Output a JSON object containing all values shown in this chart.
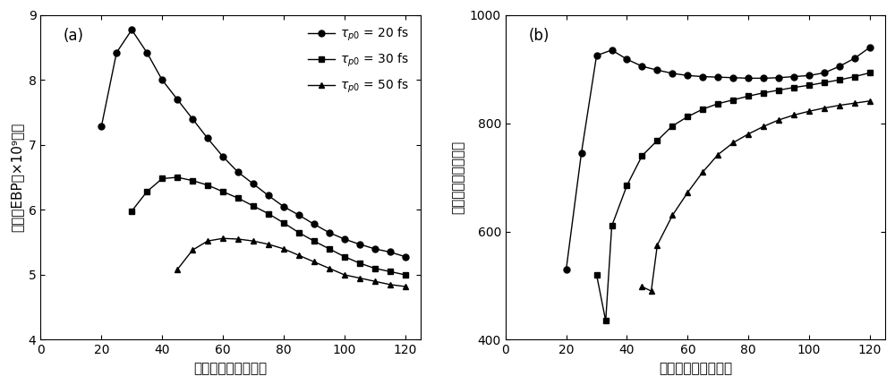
{
  "panel_a": {
    "title": "(a)",
    "xlabel": "泵浦光脉宽（飞秒）",
    "ylabel": "闪频光EBP（×10⁹瓦）",
    "xlim": [
      0,
      125
    ],
    "ylim": [
      4,
      9
    ],
    "yticks": [
      4,
      5,
      6,
      7,
      8,
      9
    ],
    "xticks": [
      0,
      20,
      40,
      60,
      80,
      100,
      120
    ],
    "series": [
      {
        "label": "20",
        "marker": "o",
        "x": [
          20,
          25,
          30,
          35,
          40,
          45,
          50,
          55,
          60,
          65,
          70,
          75,
          80,
          85,
          90,
          95,
          100,
          105,
          110,
          115,
          120
        ],
        "y": [
          7.28,
          8.42,
          8.77,
          8.42,
          8.0,
          7.7,
          7.4,
          7.1,
          6.82,
          6.58,
          6.4,
          6.22,
          6.05,
          5.92,
          5.78,
          5.65,
          5.55,
          5.47,
          5.4,
          5.35,
          5.28
        ]
      },
      {
        "label": "30",
        "marker": "s",
        "x": [
          30,
          35,
          40,
          45,
          50,
          55,
          60,
          65,
          70,
          75,
          80,
          85,
          90,
          95,
          100,
          105,
          110,
          115,
          120
        ],
        "y": [
          5.98,
          6.28,
          6.48,
          6.5,
          6.45,
          6.38,
          6.28,
          6.18,
          6.06,
          5.94,
          5.8,
          5.65,
          5.52,
          5.4,
          5.28,
          5.18,
          5.1,
          5.05,
          5.0
        ]
      },
      {
        "label": "50",
        "marker": "^",
        "x": [
          45,
          50,
          55,
          60,
          65,
          70,
          75,
          80,
          85,
          90,
          95,
          100,
          105,
          110,
          115,
          120
        ],
        "y": [
          5.08,
          5.38,
          5.52,
          5.56,
          5.55,
          5.52,
          5.47,
          5.4,
          5.3,
          5.2,
          5.1,
          5.0,
          4.95,
          4.9,
          4.85,
          4.82
        ]
      }
    ]
  },
  "panel_b": {
    "title": "(b)",
    "xlabel": "泵浦光脉宽（飞秒）",
    "ylabel": "闪频光带宽（纳米）",
    "xlim": [
      0,
      125
    ],
    "ylim": [
      400,
      1000
    ],
    "yticks": [
      400,
      600,
      800,
      1000
    ],
    "xticks": [
      0,
      20,
      40,
      60,
      80,
      100,
      120
    ],
    "series": [
      {
        "label": "20",
        "marker": "o",
        "x": [
          20,
          25,
          30,
          35,
          40,
          45,
          50,
          55,
          60,
          65,
          70,
          75,
          80,
          85,
          90,
          95,
          100,
          105,
          110,
          115,
          120
        ],
        "y": [
          530,
          745,
          925,
          935,
          918,
          905,
          898,
          892,
          888,
          886,
          885,
          884,
          883,
          883,
          884,
          886,
          888,
          893,
          905,
          920,
          940
        ]
      },
      {
        "label": "30",
        "marker": "s",
        "x": [
          30,
          33,
          35,
          40,
          45,
          50,
          55,
          60,
          65,
          70,
          75,
          80,
          85,
          90,
          95,
          100,
          105,
          110,
          115,
          120
        ],
        "y": [
          520,
          435,
          610,
          685,
          740,
          768,
          795,
          812,
          826,
          836,
          843,
          850,
          856,
          861,
          866,
          870,
          875,
          880,
          886,
          893
        ]
      },
      {
        "label": "50",
        "marker": "^",
        "x": [
          45,
          48,
          50,
          55,
          60,
          65,
          70,
          75,
          80,
          85,
          90,
          95,
          100,
          105,
          110,
          115,
          120
        ],
        "y": [
          498,
          490,
          575,
          630,
          672,
          710,
          742,
          764,
          780,
          794,
          806,
          815,
          822,
          828,
          833,
          837,
          841
        ]
      }
    ]
  },
  "color": "black",
  "markersize": 5,
  "linewidth": 1.0
}
